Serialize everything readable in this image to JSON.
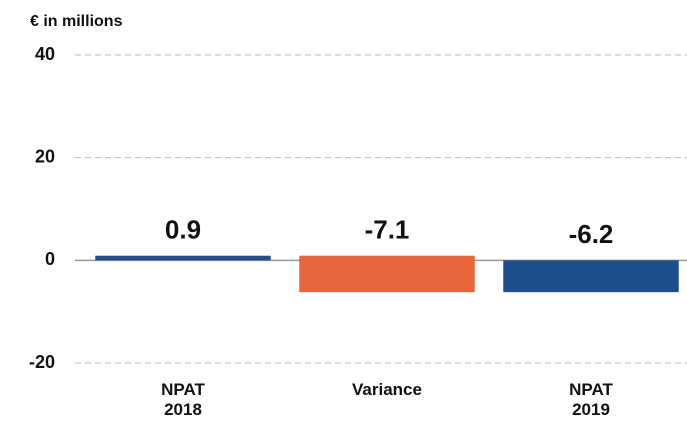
{
  "chart_data": {
    "type": "waterfall",
    "y_label": "€ in millions",
    "categories": [
      "NPAT 2018",
      "Variance",
      "NPAT 2019"
    ],
    "values": [
      0.9,
      -7.1,
      -6.2
    ],
    "totals": [
      true,
      false,
      true
    ],
    "colors": [
      "#1f4e8c",
      "#e8643a",
      "#1f4e8c"
    ],
    "ylim": [
      -20,
      40
    ],
    "yticks": [
      -20,
      0,
      20,
      40
    ],
    "grid": true
  }
}
